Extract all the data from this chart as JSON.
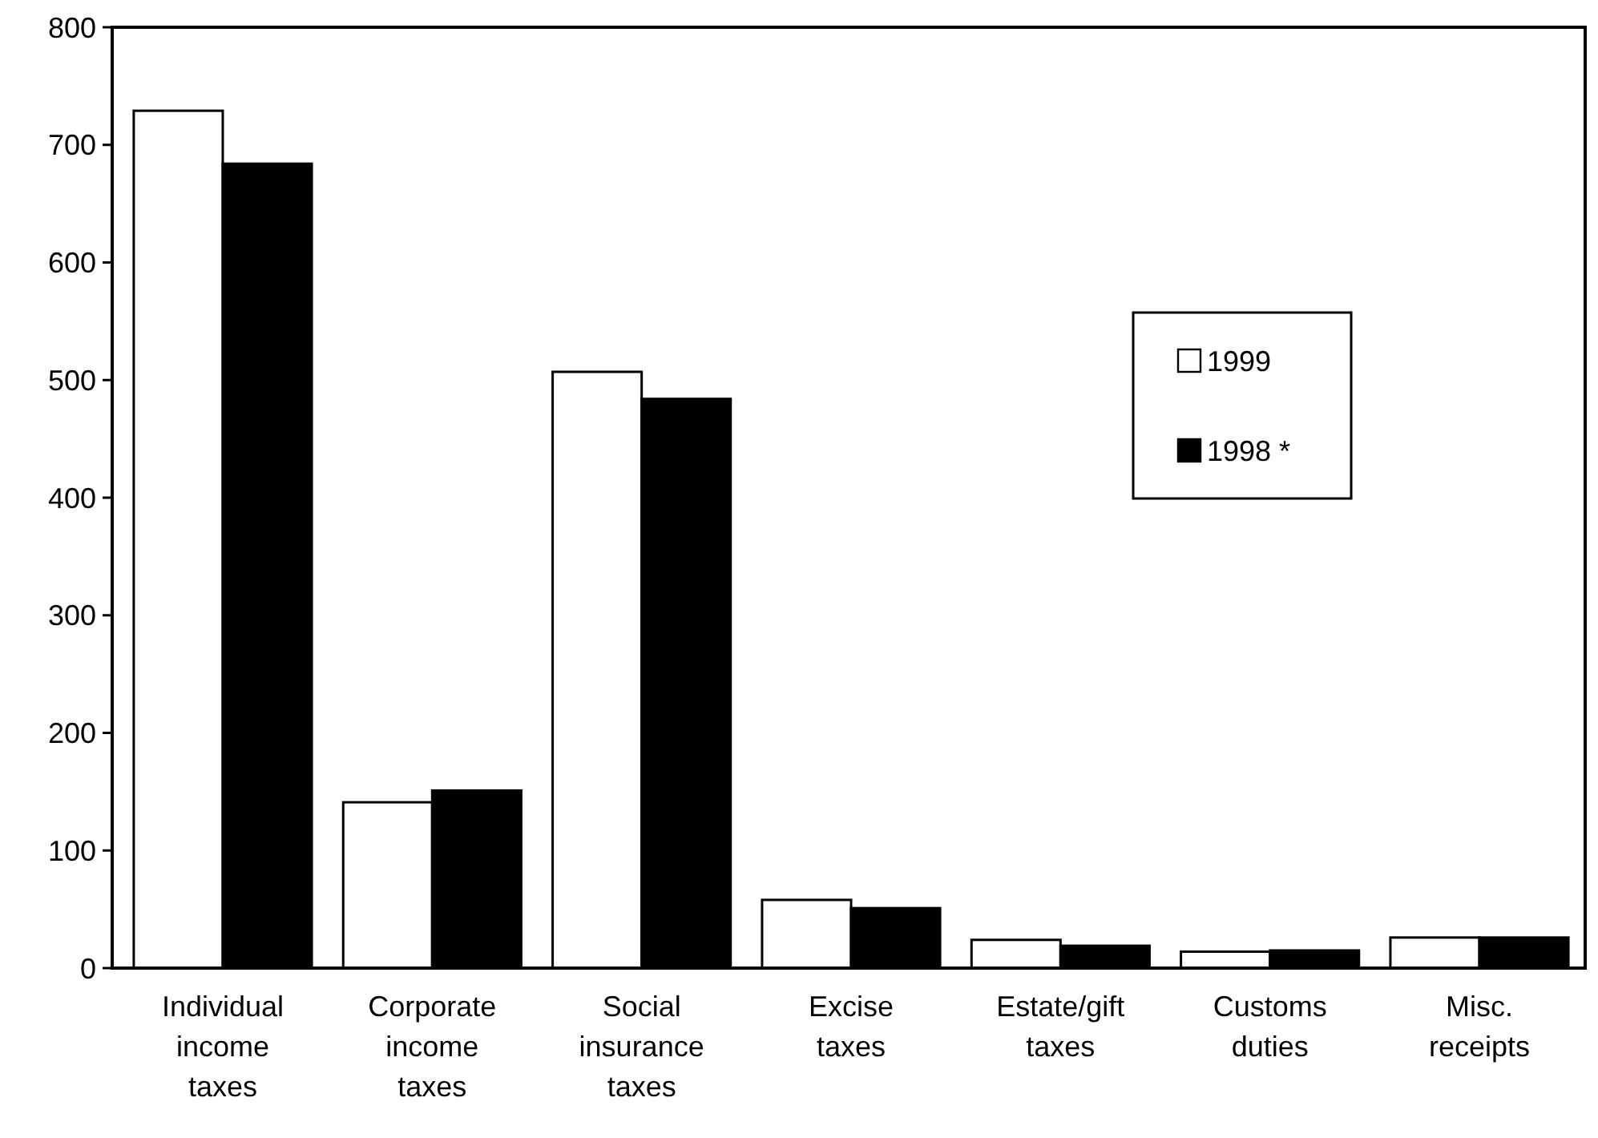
{
  "chart_data": {
    "type": "bar",
    "categories": [
      "Individual income taxes",
      "Corporate income taxes",
      "Social insurance taxes",
      "Excise taxes",
      "Estate/gift taxes",
      "Customs duties",
      "Misc. receipts"
    ],
    "series": [
      {
        "name": "1999",
        "color": "#ffffff",
        "values": [
          729,
          141,
          507,
          58,
          24,
          14,
          26
        ]
      },
      {
        "name": "1998 *",
        "color": "#000000",
        "values": [
          684,
          151,
          484,
          51,
          19,
          15,
          26
        ]
      }
    ],
    "ylim": [
      0,
      800
    ],
    "yticks": [
      0,
      100,
      200,
      300,
      400,
      500,
      600,
      700,
      800
    ],
    "grid": false,
    "legend": "right"
  }
}
